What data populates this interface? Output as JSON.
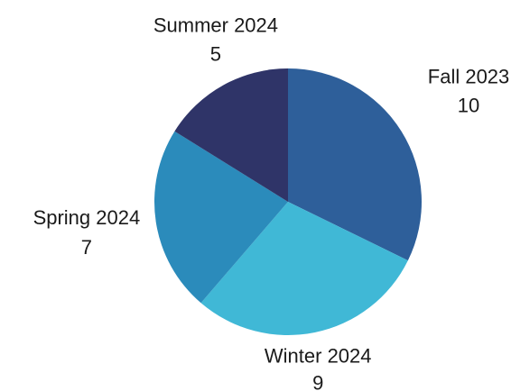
{
  "chart_data": {
    "type": "pie",
    "categories": [
      "Fall 2023",
      "Winter 2024",
      "Spring 2024",
      "Summer 2024"
    ],
    "values": [
      10,
      9,
      7,
      5
    ],
    "colors": [
      "#2e5f9a",
      "#40b8d6",
      "#2b8bbb",
      "#2f3468"
    ]
  }
}
